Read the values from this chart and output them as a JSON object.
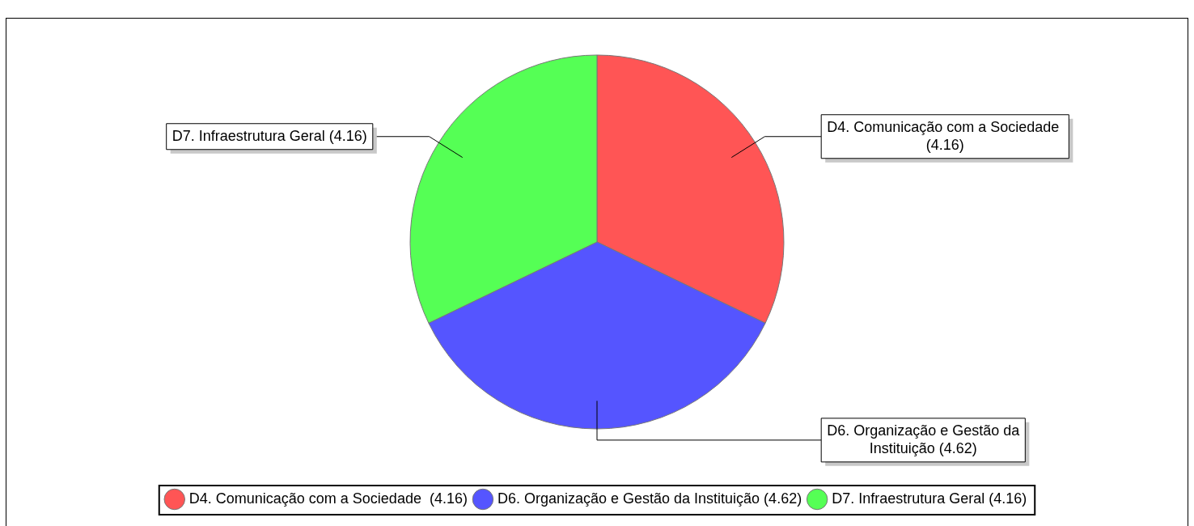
{
  "chart_data": {
    "type": "pie",
    "categories": [
      "D4. Comunicação com a Sociedade  (4.16)",
      "D6. Organização e Gestão da Instituição (4.62)",
      "D7. Infraestrutura Geral (4.16)"
    ],
    "values": [
      4.16,
      4.62,
      4.16
    ],
    "colors": [
      "#ff5555",
      "#5555ff",
      "#55ff55"
    ],
    "legend": "bottom"
  }
}
